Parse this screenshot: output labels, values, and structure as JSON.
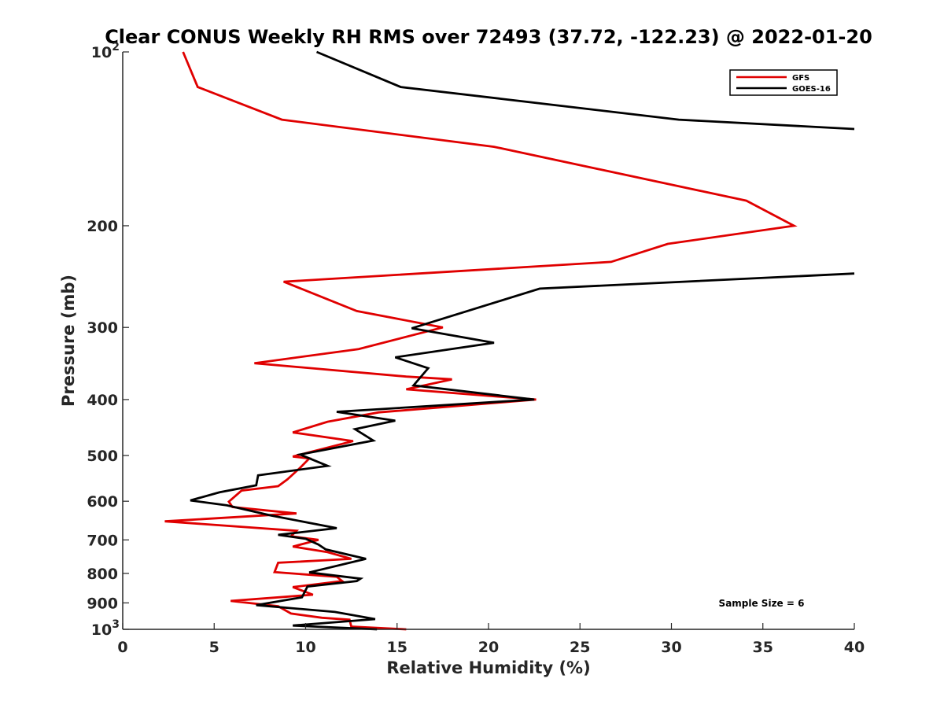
{
  "chart_data": {
    "type": "line",
    "title": "Clear CONUS Weekly RH RMS over 72493 (37.72, -122.23) @ 2022-01-20",
    "xlabel": "Relative Humidity (%)",
    "ylabel": "Pressure (mb)",
    "xlim": [
      0,
      40
    ],
    "ylim": [
      100,
      1000
    ],
    "y_scale": "log",
    "y_reversed": true,
    "grid": false,
    "x_ticks": [
      0,
      5,
      10,
      15,
      20,
      25,
      30,
      35,
      40
    ],
    "x_tick_labels": [
      "0",
      "5",
      "10",
      "15",
      "20",
      "25",
      "30",
      "35",
      "40"
    ],
    "y_ticks": [
      100,
      200,
      300,
      400,
      500,
      600,
      700,
      800,
      900,
      1000
    ],
    "y_tick_labels": [
      {
        "base": "10",
        "exp": "2"
      },
      {
        "base": "200",
        "exp": ""
      },
      {
        "base": "300",
        "exp": ""
      },
      {
        "base": "400",
        "exp": ""
      },
      {
        "base": "500",
        "exp": ""
      },
      {
        "base": "600",
        "exp": ""
      },
      {
        "base": "700",
        "exp": ""
      },
      {
        "base": "800",
        "exp": ""
      },
      {
        "base": "900",
        "exp": ""
      },
      {
        "base": "10",
        "exp": "3"
      }
    ],
    "legend": {
      "placement": "top-right",
      "entries": [
        {
          "name": "GFS",
          "color": "#e00000"
        },
        {
          "name": "GOES-16",
          "color": "#000000"
        }
      ]
    },
    "annotation": "Sample Size = 6",
    "series": [
      {
        "name": "GFS",
        "color": "#e00000",
        "points": [
          [
            3.3,
            100
          ],
          [
            4.1,
            115
          ],
          [
            8.7,
            131
          ],
          [
            20.3,
            146
          ],
          [
            34.1,
            181
          ],
          [
            36.7,
            200
          ],
          [
            29.8,
            215
          ],
          [
            26.7,
            231
          ],
          [
            8.8,
            250
          ],
          [
            12.8,
            281
          ],
          [
            17.5,
            300
          ],
          [
            12.9,
            327
          ],
          [
            7.2,
            346
          ],
          [
            15.5,
            365
          ],
          [
            18.0,
            369
          ],
          [
            15.5,
            384
          ],
          [
            22.6,
            400
          ],
          [
            14.0,
            421
          ],
          [
            11.2,
            437
          ],
          [
            9.3,
            456
          ],
          [
            12.6,
            472
          ],
          [
            9.3,
            502
          ],
          [
            10.2,
            506
          ],
          [
            9.7,
            525
          ],
          [
            9.0,
            550
          ],
          [
            8.5,
            565
          ],
          [
            6.5,
            575
          ],
          [
            5.8,
            601
          ],
          [
            6.0,
            614
          ],
          [
            9.5,
            630
          ],
          [
            2.3,
            650
          ],
          [
            9.5,
            675
          ],
          [
            9.2,
            690
          ],
          [
            10.7,
            700
          ],
          [
            9.3,
            719
          ],
          [
            11.2,
            735
          ],
          [
            12.5,
            755
          ],
          [
            8.5,
            767
          ],
          [
            8.3,
            796
          ],
          [
            11.7,
            811
          ],
          [
            12.0,
            825
          ],
          [
            9.3,
            845
          ],
          [
            10.4,
            871
          ],
          [
            5.9,
            893
          ],
          [
            8.5,
            912
          ],
          [
            9.2,
            939
          ],
          [
            10.9,
            955
          ],
          [
            12.4,
            962
          ],
          [
            12.5,
            989
          ],
          [
            15.5,
            1000
          ]
        ]
      },
      {
        "name": "GOES-16",
        "color": "#000000",
        "points": [
          [
            10.6,
            100
          ],
          [
            15.2,
            115
          ],
          [
            30.4,
            131
          ],
          [
            40.0,
            136
          ],
          [
            null,
            null
          ],
          [
            40.0,
            242
          ],
          [
            22.8,
            257
          ],
          [
            15.8,
            301
          ],
          [
            20.3,
            319
          ],
          [
            14.9,
            338
          ],
          [
            16.7,
            353
          ],
          [
            15.9,
            378
          ],
          [
            22.5,
            400
          ],
          [
            11.7,
            420
          ],
          [
            14.9,
            435
          ],
          [
            12.7,
            450
          ],
          [
            13.7,
            471
          ],
          [
            9.7,
            498
          ],
          [
            11.2,
            521
          ],
          [
            7.4,
            541
          ],
          [
            7.3,
            563
          ],
          [
            5.3,
            579
          ],
          [
            3.7,
            598
          ],
          [
            5.7,
            610
          ],
          [
            8.1,
            635
          ],
          [
            11.7,
            668
          ],
          [
            8.5,
            686
          ],
          [
            10.0,
            697
          ],
          [
            10.7,
            713
          ],
          [
            11.1,
            727
          ],
          [
            13.3,
            755
          ],
          [
            10.2,
            797
          ],
          [
            13.0,
            817
          ],
          [
            12.8,
            825
          ],
          [
            10.1,
            843
          ],
          [
            9.8,
            880
          ],
          [
            7.3,
            908
          ],
          [
            11.6,
            933
          ],
          [
            13.8,
            960
          ],
          [
            9.3,
            985
          ],
          [
            13.9,
            1000
          ]
        ]
      }
    ]
  }
}
